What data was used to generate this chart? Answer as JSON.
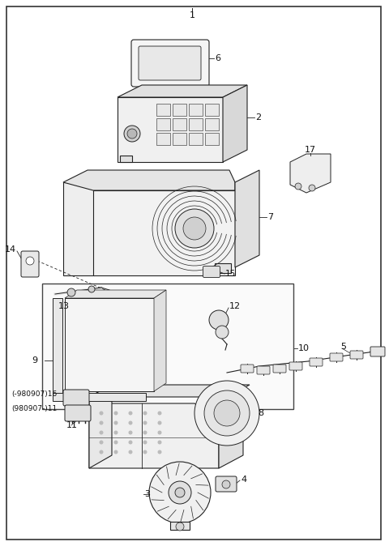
{
  "bg_color": "#ffffff",
  "border_color": "#333333",
  "line_color": "#222222",
  "label_color": "#111111",
  "fig_w": 4.8,
  "fig_h": 6.74,
  "dpi": 100
}
